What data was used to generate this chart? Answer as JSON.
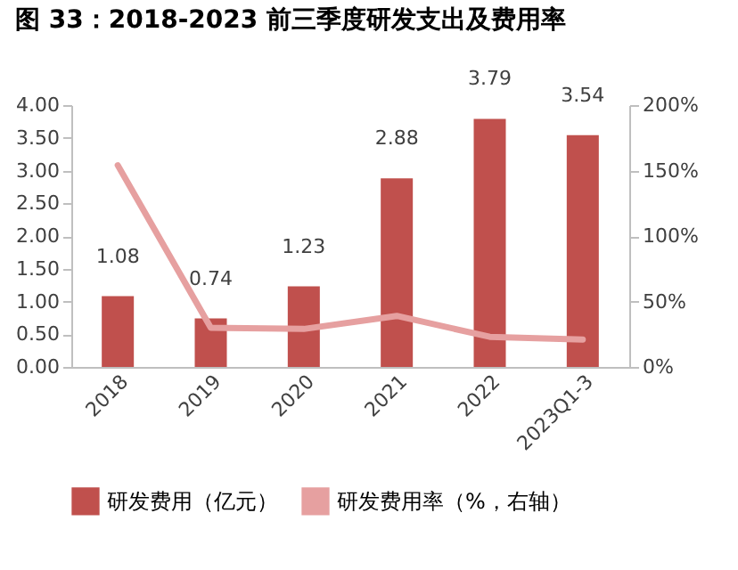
{
  "chart_data": {
    "type": "bar",
    "title": "图 33：2018-2023 前三季度研发支出及费用率",
    "categories": [
      "2018",
      "2019",
      "2020",
      "2021",
      "2022",
      "2023Q1-3"
    ],
    "series": [
      {
        "name": "研发费用（亿元）",
        "color": "#c0504d",
        "values": [
          1.08,
          0.74,
          1.23,
          2.88,
          3.79,
          3.54
        ],
        "value_labels": [
          "1.08",
          "0.74",
          "1.23",
          "2.88",
          "3.79",
          "3.54"
        ]
      },
      {
        "name": "研发费用率（%，右轴）",
        "type": "line",
        "axis": "y2",
        "color": "#e6a0a0",
        "values": [
          154,
          30,
          29,
          39,
          23,
          21
        ]
      }
    ],
    "ylim": [
      0,
      4
    ],
    "yticks": [
      {
        "value": 0,
        "label": "0.00"
      },
      {
        "value": 0.5,
        "label": "0.50"
      },
      {
        "value": 1,
        "label": "1.00"
      },
      {
        "value": 1.5,
        "label": "1.50"
      },
      {
        "value": 2,
        "label": "2.00"
      },
      {
        "value": 2.5,
        "label": "2.50"
      },
      {
        "value": 3,
        "label": "3.00"
      },
      {
        "value": 3.5,
        "label": "3.50"
      },
      {
        "value": 4,
        "label": "4.00"
      }
    ],
    "y2lim": [
      0,
      200
    ],
    "y2ticks": [
      {
        "value": 0,
        "label": "0%"
      },
      {
        "value": 50,
        "label": "50%"
      },
      {
        "value": 100,
        "label": "100%"
      },
      {
        "value": 150,
        "label": "150%"
      },
      {
        "value": 200,
        "label": "200%"
      }
    ],
    "legend": "bottom",
    "grid": false
  }
}
